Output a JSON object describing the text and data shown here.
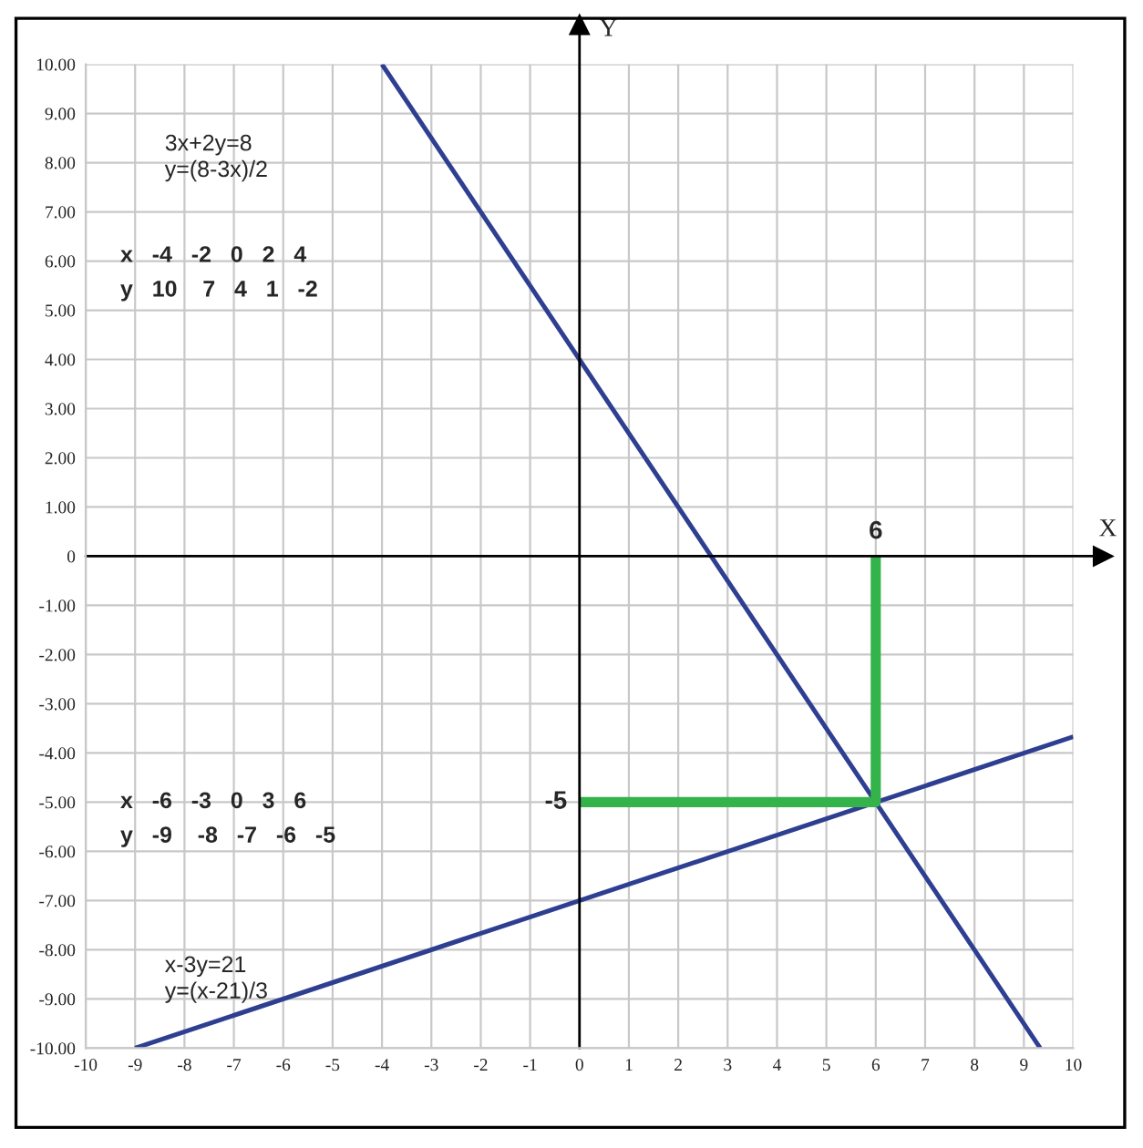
{
  "chart_data": {
    "type": "line",
    "xlabel": "X",
    "ylabel": "Y",
    "xlim": [
      -10,
      10
    ],
    "ylim": [
      -10,
      10
    ],
    "xticks": [
      -10,
      -9,
      -8,
      -7,
      -6,
      -5,
      -4,
      -3,
      -2,
      -1,
      0,
      1,
      2,
      3,
      4,
      5,
      6,
      7,
      8,
      9,
      10
    ],
    "yticks": [
      {
        "value": 10,
        "label": "10.00"
      },
      {
        "value": 9,
        "label": "9.00"
      },
      {
        "value": 8,
        "label": "8.00"
      },
      {
        "value": 7,
        "label": "7.00"
      },
      {
        "value": 6,
        "label": "6.00"
      },
      {
        "value": 5,
        "label": "5.00"
      },
      {
        "value": 4,
        "label": "4.00"
      },
      {
        "value": 3,
        "label": "3.00"
      },
      {
        "value": 2,
        "label": "2.00"
      },
      {
        "value": 1,
        "label": "1.00"
      },
      0,
      {
        "value": -1,
        "label": "-1.00"
      },
      {
        "value": -2,
        "label": "-2.00"
      },
      {
        "value": -3,
        "label": "-3.00"
      },
      {
        "value": -4,
        "label": "-4.00"
      },
      {
        "value": -5,
        "label": "-5.00"
      },
      {
        "value": -6,
        "label": "-6.00"
      },
      {
        "value": -7,
        "label": "-7.00"
      },
      {
        "value": -8,
        "label": "-8.00"
      },
      {
        "value": -9,
        "label": "-9.00"
      },
      {
        "value": -10,
        "label": "-10.00"
      }
    ],
    "grid": true,
    "legend": false,
    "marker": "none",
    "line_style": "solid",
    "series": [
      {
        "color": "#2e3f91",
        "x": [
          -4,
          9.33
        ],
        "values": [
          10,
          -10
        ]
      },
      {
        "color": "#2e3f91",
        "x": [
          -9,
          10
        ],
        "values": [
          -10,
          -3.67
        ]
      },
      {
        "color": "#33b34a",
        "x": [
          0,
          6,
          6
        ],
        "values": [
          -5,
          -5,
          0
        ]
      }
    ],
    "annotations": [
      "3x+2y=8\ny=(8-3x)/2",
      "x   -4   -2   0   2   4",
      "y   10    7   4   1   -2",
      "x   -6   -3   0   3   6",
      "y   -9    -8   -7   -6   -5",
      "x-3y=21\ny=(x-21)/3",
      {
        "text": "6",
        "x": 6,
        "y": 0
      },
      {
        "text": "-5",
        "x": 0,
        "y": -5
      }
    ]
  }
}
